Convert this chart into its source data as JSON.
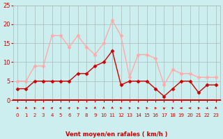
{
  "hours": [
    0,
    1,
    2,
    3,
    4,
    5,
    6,
    7,
    8,
    9,
    10,
    11,
    12,
    13,
    14,
    15,
    16,
    17,
    18,
    19,
    20,
    21,
    22,
    23
  ],
  "wind_avg": [
    3,
    3,
    5,
    5,
    5,
    5,
    5,
    7,
    7,
    9,
    10,
    13,
    4,
    5,
    5,
    5,
    3,
    1,
    3,
    5,
    5,
    2,
    4,
    4
  ],
  "wind_gust": [
    5,
    5,
    9,
    9,
    17,
    17,
    14,
    17,
    14,
    12,
    15,
    21,
    17,
    6,
    12,
    12,
    11,
    4,
    8,
    7,
    7,
    6,
    6,
    6
  ],
  "line_avg_color": "#cc0000",
  "line_gust_color": "#ffaaaa",
  "bg_color": "#cceeee",
  "grid_color": "#aabbbb",
  "axis_label_color": "#cc0000",
  "tick_color": "#cc0000",
  "xlabel": "Vent moyen/en rafales ( km/h )",
  "ylim": [
    0,
    25
  ],
  "yticks": [
    0,
    5,
    10,
    15,
    20,
    25
  ],
  "arrow_angles": [
    225,
    0,
    315,
    45,
    45,
    45,
    45,
    315,
    315,
    0,
    0,
    0,
    315,
    315,
    315,
    315,
    315,
    180,
    315,
    270,
    270,
    315,
    135,
    0
  ]
}
